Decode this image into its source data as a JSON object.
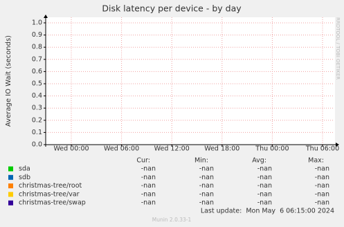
{
  "chart_data": {
    "type": "line",
    "title": "Disk latency per device - by day",
    "ylabel": "Average IO Wait (seconds)",
    "side_text": "RRDTOOL / TOBI OETIKER",
    "ylim": [
      0,
      1.0
    ],
    "yticks": [
      {
        "value": 0,
        "label": "0.0"
      },
      0.1,
      0.2,
      0.3,
      0.4,
      0.5,
      0.6,
      0.7,
      0.8,
      0.9,
      {
        "value": 1.0,
        "label": "1.0"
      }
    ],
    "xticks": [
      "Wed 00:00",
      "Wed 06:00",
      "Wed 12:00",
      "Wed 18:00",
      "Thu 00:00",
      "Thu 06:00"
    ],
    "grid": true,
    "legend_columns": [
      "Cur:",
      "Min:",
      "Avg:",
      "Max:"
    ],
    "series": [
      {
        "name": "sda",
        "color": "#00cc00",
        "stats": [
          "-nan",
          "-nan",
          "-nan",
          "-nan"
        ]
      },
      {
        "name": "sdb",
        "color": "#0066b3",
        "stats": [
          "-nan",
          "-nan",
          "-nan",
          "-nan"
        ]
      },
      {
        "name": "christmas-tree/root",
        "color": "#ff8000",
        "stats": [
          "-nan",
          "-nan",
          "-nan",
          "-nan"
        ]
      },
      {
        "name": "christmas-tree/var",
        "color": "#ffcc00",
        "stats": [
          "-nan",
          "-nan",
          "-nan",
          "-nan"
        ]
      },
      {
        "name": "christmas-tree/swap",
        "color": "#330099",
        "stats": [
          "-nan",
          "-nan",
          "-nan",
          "-nan"
        ]
      }
    ],
    "last_update": "Last update:  Mon May  6 06:15:00 2024",
    "footer": "Munin 2.0.33-1"
  }
}
